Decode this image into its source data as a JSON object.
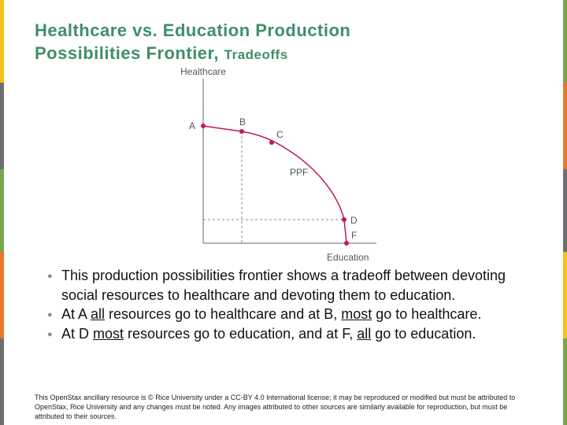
{
  "header": {
    "title_lines": [
      "Healthcare vs. Education Production",
      "Possibilities Frontier,"
    ],
    "title_suffix": "Tradeoffs"
  },
  "diagram": {
    "y_label": "Healthcare",
    "x_label": "Education",
    "curve_label": "PPF",
    "points": [
      {
        "label": "A"
      },
      {
        "label": "B"
      },
      {
        "label": "C"
      },
      {
        "label": "D"
      },
      {
        "label": "F"
      }
    ]
  },
  "bullets": [
    [
      {
        "text": "This production possibilities frontier shows a tradeoff between devoting social resources to healthcare and devoting them to education."
      }
    ],
    [
      {
        "text": "At A "
      },
      {
        "text": "all",
        "underline": true
      },
      {
        "text": " resources go to healthcare and at B, "
      },
      {
        "text": "most",
        "underline": true
      },
      {
        "text": " go to healthcare."
      }
    ],
    [
      {
        "text": "At D "
      },
      {
        "text": "most",
        "underline": true
      },
      {
        "text": " resources go to education, and at F, "
      },
      {
        "text": "all",
        "underline": true
      },
      {
        "text": " go to education."
      }
    ]
  ],
  "footer": "This OpenStax ancillary resource is © Rice University under a CC-BY 4.0 International license; it may be reproduced or modified but must be attributed to OpenStax, Rice University and any changes must be noted.  Any images attributed to other sources are similarly available for reproduction, but must be attributed to their sources."
}
